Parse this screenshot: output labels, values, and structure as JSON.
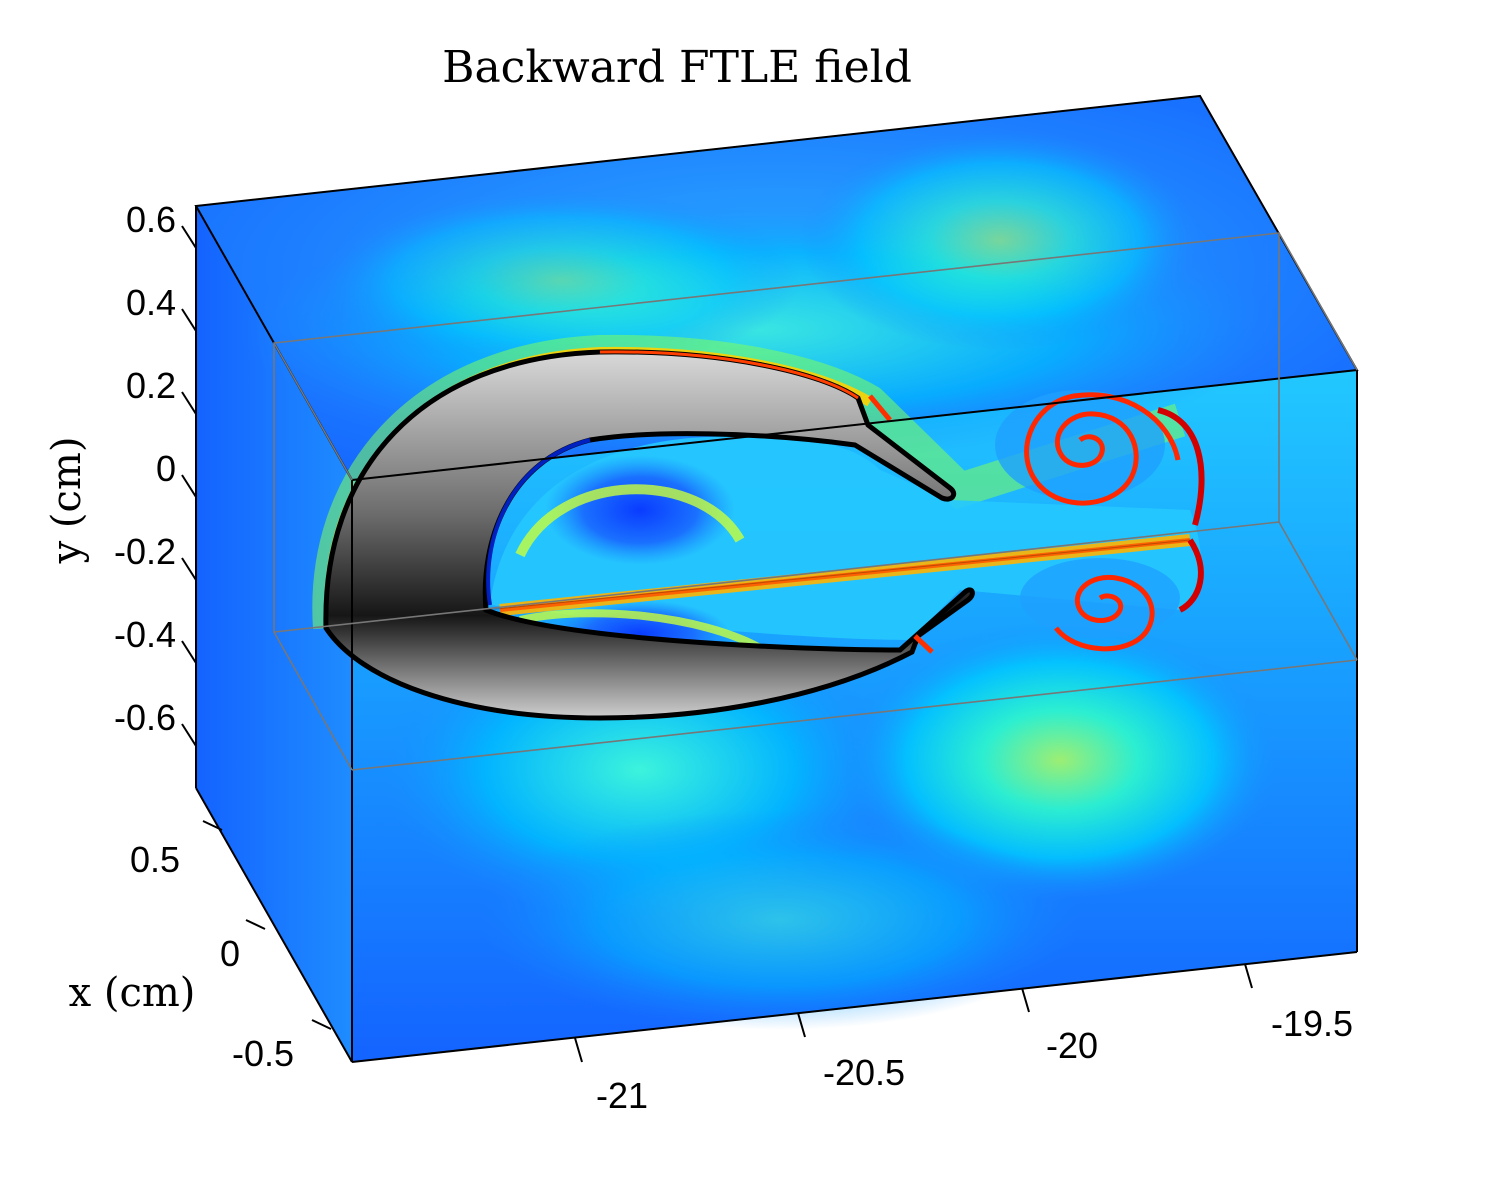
{
  "chart_data": {
    "type": "heatmap",
    "title": "Backward FTLE field",
    "xlabel": "x (cm)",
    "ylabel": "y (cm)",
    "y_ticks": [
      "0.6",
      "0.4",
      "0.2",
      "0",
      "-0.2",
      "-0.4",
      "-0.6"
    ],
    "x_ticks": [
      "0.5",
      "0",
      "-0.5"
    ],
    "z_ticks": [
      "-21",
      "-20.5",
      "-20",
      "-19.5"
    ],
    "colormap": "jet",
    "colors": {
      "low": "#1463ff",
      "mid": "#00e5ff",
      "high_mid": "#d8ff3c",
      "high": "#d20000",
      "body_light": "#d6d6d6",
      "body_dark": "#141414"
    }
  }
}
